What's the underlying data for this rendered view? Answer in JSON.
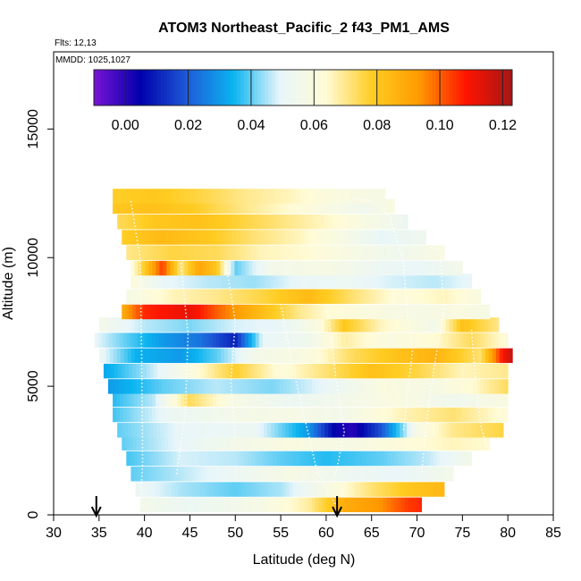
{
  "chart_data": {
    "type": "heatmap",
    "title": "ATOM3 Northeast_Pacific_2 f43_PM1_AMS",
    "flights_label": "Flts: 12,13",
    "dates_label": "MMDD: 1025,1027",
    "xlabel": "Latitude (deg N)",
    "ylabel": "Altitude (m)",
    "xlim": [
      30,
      85
    ],
    "ylim": [
      0,
      18000
    ],
    "x_ticks": [
      30,
      35,
      40,
      45,
      50,
      55,
      60,
      65,
      70,
      75,
      80,
      85
    ],
    "y_ticks": [
      0,
      5000,
      10000,
      15000
    ],
    "colorbar": {
      "range": [
        -0.01,
        0.123
      ],
      "ticks": [
        0.0,
        0.02,
        0.04,
        0.06,
        0.08,
        0.1,
        0.12
      ],
      "tick_labels": [
        "0.00",
        "0.02",
        "0.04",
        "0.06",
        "0.08",
        "0.10",
        "0.12"
      ],
      "major_lines": [
        0.0,
        0.02,
        0.04,
        0.06,
        0.08,
        0.1,
        0.12
      ],
      "colors": [
        "#7a14d6",
        "#0000aa",
        "#1e5ad8",
        "#0ab4f0",
        "#e8f6fa",
        "#fffbd6",
        "#ffcc22",
        "#ff9a00",
        "#ff1400",
        "#a51616"
      ]
    },
    "arrows_latitude": [
      34.7,
      61.2
    ],
    "layers": [
      {
        "alt": 400,
        "lat_min": 39.5,
        "lat_max": 70.5,
        "stops": [
          [
            39.5,
            0.056
          ],
          [
            45,
            0.052
          ],
          [
            53,
            0.058
          ],
          [
            58,
            0.068
          ],
          [
            62,
            0.088
          ],
          [
            66,
            0.094
          ],
          [
            69,
            0.104
          ],
          [
            70.5,
            0.106
          ]
        ]
      },
      {
        "alt": 1000,
        "lat_min": 39,
        "lat_max": 73,
        "stops": [
          [
            39,
            0.052
          ],
          [
            44,
            0.045
          ],
          [
            50,
            0.04
          ],
          [
            55,
            0.045
          ],
          [
            60,
            0.058
          ],
          [
            65,
            0.072
          ],
          [
            69,
            0.08
          ],
          [
            73,
            0.085
          ]
        ]
      },
      {
        "alt": 1600,
        "lat_min": 38.5,
        "lat_max": 74,
        "stops": [
          [
            38.5,
            0.04
          ],
          [
            44,
            0.046
          ],
          [
            50,
            0.052
          ],
          [
            56,
            0.058
          ],
          [
            62,
            0.053
          ],
          [
            68,
            0.05
          ],
          [
            74,
            0.056
          ]
        ]
      },
      {
        "alt": 2200,
        "lat_min": 38,
        "lat_max": 76,
        "stops": [
          [
            38,
            0.038
          ],
          [
            44,
            0.048
          ],
          [
            50,
            0.046
          ],
          [
            55,
            0.04
          ],
          [
            60,
            0.036
          ],
          [
            66,
            0.04
          ],
          [
            71,
            0.046
          ],
          [
            76,
            0.056
          ]
        ]
      },
      {
        "alt": 2800,
        "lat_min": 37.5,
        "lat_max": 78,
        "stops": [
          [
            37.5,
            0.04
          ],
          [
            44,
            0.05
          ],
          [
            50,
            0.056
          ],
          [
            56,
            0.06
          ],
          [
            62,
            0.058
          ],
          [
            68,
            0.062
          ],
          [
            74,
            0.066
          ],
          [
            78,
            0.064
          ]
        ]
      },
      {
        "alt": 3300,
        "lat_min": 37,
        "lat_max": 79.5,
        "stops": [
          [
            37,
            0.04
          ],
          [
            44,
            0.05
          ],
          [
            52,
            0.052
          ],
          [
            58,
            0.03
          ],
          [
            61,
            0.004
          ],
          [
            63,
            0.0
          ],
          [
            66,
            0.018
          ],
          [
            70,
            0.058
          ],
          [
            74,
            0.07
          ],
          [
            79.5,
            0.076
          ]
        ]
      },
      {
        "alt": 3900,
        "lat_min": 36.5,
        "lat_max": 80,
        "stops": [
          [
            36.5,
            0.038
          ],
          [
            43,
            0.052
          ],
          [
            50,
            0.056
          ],
          [
            56,
            0.058
          ],
          [
            62,
            0.056
          ],
          [
            68,
            0.066
          ],
          [
            74,
            0.072
          ],
          [
            80,
            0.062
          ]
        ]
      },
      {
        "alt": 4500,
        "lat_min": 36.5,
        "lat_max": 80,
        "stops": [
          [
            36.5,
            0.036
          ],
          [
            41,
            0.046
          ],
          [
            45,
            0.074
          ],
          [
            50,
            0.058
          ],
          [
            56,
            0.052
          ],
          [
            62,
            0.056
          ],
          [
            68,
            0.06
          ],
          [
            74,
            0.054
          ],
          [
            80,
            0.06
          ]
        ]
      },
      {
        "alt": 5000,
        "lat_min": 36,
        "lat_max": 80,
        "stops": [
          [
            36,
            0.03
          ],
          [
            42,
            0.04
          ],
          [
            48,
            0.046
          ],
          [
            54,
            0.042
          ],
          [
            60,
            0.05
          ],
          [
            66,
            0.06
          ],
          [
            72,
            0.058
          ],
          [
            76,
            0.064
          ],
          [
            80,
            0.074
          ]
        ]
      },
      {
        "alt": 5600,
        "lat_min": 35.5,
        "lat_max": 80,
        "stops": [
          [
            35.5,
            0.032
          ],
          [
            40,
            0.044
          ],
          [
            45,
            0.06
          ],
          [
            50,
            0.078
          ],
          [
            55,
            0.062
          ],
          [
            60,
            0.072
          ],
          [
            65,
            0.082
          ],
          [
            70,
            0.076
          ],
          [
            75,
            0.066
          ],
          [
            80,
            0.07
          ]
        ]
      },
      {
        "alt": 6200,
        "lat_min": 35,
        "lat_max": 80.5,
        "stops": [
          [
            35,
            0.052
          ],
          [
            39,
            0.034
          ],
          [
            44,
            0.03
          ],
          [
            48,
            0.04
          ],
          [
            52,
            0.056
          ],
          [
            58,
            0.06
          ],
          [
            63,
            0.074
          ],
          [
            68,
            0.082
          ],
          [
            72,
            0.086
          ],
          [
            77,
            0.072
          ],
          [
            79.5,
            0.11
          ],
          [
            80.5,
            0.118
          ]
        ]
      },
      {
        "alt": 6800,
        "lat_min": 34.5,
        "lat_max": 80,
        "stops": [
          [
            34.5,
            0.05
          ],
          [
            38,
            0.04
          ],
          [
            42,
            0.03
          ],
          [
            46,
            0.024
          ],
          [
            50,
            0.01
          ],
          [
            53,
            0.05
          ],
          [
            58,
            0.054
          ],
          [
            62,
            0.068
          ],
          [
            67,
            0.06
          ],
          [
            72,
            0.064
          ],
          [
            76,
            0.074
          ],
          [
            80,
            0.062
          ]
        ]
      },
      {
        "alt": 7400,
        "lat_min": 35,
        "lat_max": 79,
        "stops": [
          [
            35,
            0.056
          ],
          [
            40,
            0.046
          ],
          [
            45,
            0.042
          ],
          [
            50,
            0.048
          ],
          [
            55,
            0.05
          ],
          [
            59,
            0.06
          ],
          [
            62,
            0.08
          ],
          [
            66,
            0.066
          ],
          [
            72,
            0.056
          ],
          [
            75,
            0.082
          ],
          [
            79,
            0.07
          ]
        ]
      },
      {
        "alt": 7900,
        "lat_min": 37.5,
        "lat_max": 78,
        "stops": [
          [
            37.5,
            0.088
          ],
          [
            40,
            0.106
          ],
          [
            45,
            0.112
          ],
          [
            48,
            0.1
          ],
          [
            52,
            0.086
          ],
          [
            57,
            0.07
          ],
          [
            60,
            0.064
          ],
          [
            65,
            0.06
          ],
          [
            70,
            0.058
          ],
          [
            75,
            0.06
          ],
          [
            78,
            0.058
          ]
        ]
      },
      {
        "alt": 8500,
        "lat_min": 38,
        "lat_max": 77,
        "stops": [
          [
            38,
            0.058
          ],
          [
            43,
            0.066
          ],
          [
            48,
            0.07
          ],
          [
            53,
            0.076
          ],
          [
            58,
            0.084
          ],
          [
            63,
            0.072
          ],
          [
            68,
            0.062
          ],
          [
            73,
            0.066
          ],
          [
            77,
            0.06
          ]
        ]
      },
      {
        "alt": 9100,
        "lat_min": 38.5,
        "lat_max": 76,
        "stops": [
          [
            38.5,
            0.062
          ],
          [
            42,
            0.05
          ],
          [
            47,
            0.046
          ],
          [
            52,
            0.044
          ],
          [
            57,
            0.05
          ],
          [
            62,
            0.052
          ],
          [
            67,
            0.048
          ],
          [
            72,
            0.046
          ],
          [
            76,
            0.05
          ]
        ]
      },
      {
        "alt": 9600,
        "lat_min": 38.5,
        "lat_max": 75,
        "stops": [
          [
            38.5,
            0.06
          ],
          [
            42,
            0.104
          ],
          [
            44,
            0.07
          ],
          [
            46,
            0.09
          ],
          [
            48,
            0.08
          ],
          [
            50,
            0.04
          ],
          [
            54,
            0.056
          ],
          [
            60,
            0.058
          ],
          [
            66,
            0.052
          ],
          [
            70,
            0.05
          ],
          [
            75,
            0.056
          ]
        ]
      },
      {
        "alt": 10200,
        "lat_min": 38,
        "lat_max": 73,
        "stops": [
          [
            38,
            0.07
          ],
          [
            43,
            0.076
          ],
          [
            48,
            0.074
          ],
          [
            53,
            0.066
          ],
          [
            58,
            0.064
          ],
          [
            63,
            0.058
          ],
          [
            68,
            0.054
          ],
          [
            73,
            0.06
          ]
        ]
      },
      {
        "alt": 10800,
        "lat_min": 37.5,
        "lat_max": 71,
        "stops": [
          [
            37.5,
            0.078
          ],
          [
            42,
            0.084
          ],
          [
            47,
            0.08
          ],
          [
            52,
            0.072
          ],
          [
            57,
            0.066
          ],
          [
            62,
            0.058
          ],
          [
            66,
            0.05
          ],
          [
            71,
            0.054
          ]
        ]
      },
      {
        "alt": 11400,
        "lat_min": 37,
        "lat_max": 69,
        "stops": [
          [
            37,
            0.074
          ],
          [
            41,
            0.08
          ],
          [
            46,
            0.082
          ],
          [
            51,
            0.076
          ],
          [
            56,
            0.07
          ],
          [
            61,
            0.064
          ],
          [
            65,
            0.058
          ],
          [
            69,
            0.052
          ]
        ]
      },
      {
        "alt": 12000,
        "lat_min": 36.5,
        "lat_max": 67.5,
        "stops": [
          [
            36.5,
            0.08
          ],
          [
            41,
            0.082
          ],
          [
            46,
            0.078
          ],
          [
            51,
            0.07
          ],
          [
            56,
            0.064
          ],
          [
            61,
            0.058
          ],
          [
            64,
            0.054
          ],
          [
            67.5,
            0.06
          ]
        ]
      },
      {
        "alt": 12400,
        "lat_min": 36.5,
        "lat_max": 66.5,
        "stops": [
          [
            36.5,
            0.078
          ],
          [
            41,
            0.08
          ],
          [
            46,
            0.076
          ],
          [
            51,
            0.07
          ],
          [
            56,
            0.066
          ],
          [
            61,
            0.06
          ],
          [
            66.5,
            0.058
          ]
        ]
      }
    ],
    "flight_tracks": [
      [
        [
          38.5,
          12200
        ],
        [
          39.5,
          10000
        ],
        [
          39.7,
          6000
        ],
        [
          39.8,
          2000
        ],
        [
          39.5,
          300
        ]
      ],
      [
        [
          44,
          9800
        ],
        [
          44.8,
          7000
        ],
        [
          44.5,
          4000
        ],
        [
          43.5,
          1500
        ]
      ],
      [
        [
          49,
          9700
        ],
        [
          50,
          7500
        ],
        [
          49.5,
          5200
        ],
        [
          50,
          3000
        ]
      ],
      [
        [
          55,
          8200
        ],
        [
          56.5,
          5500
        ],
        [
          58,
          3200
        ],
        [
          59,
          1700
        ],
        [
          61,
          400
        ]
      ],
      [
        [
          60,
          8200
        ],
        [
          60.5,
          7000
        ],
        [
          61,
          5500
        ],
        [
          62,
          3200
        ],
        [
          61,
          1500
        ]
      ],
      [
        [
          63,
          12300
        ],
        [
          65,
          12200
        ],
        [
          67,
          11600
        ],
        [
          68.5,
          9800
        ],
        [
          69,
          7500
        ],
        [
          69.5,
          6400
        ],
        [
          68.5,
          3300
        ]
      ],
      [
        [
          71.5,
          10400
        ],
        [
          72.5,
          10300
        ],
        [
          73,
          8000
        ],
        [
          72,
          6000
        ],
        [
          71,
          3500
        ],
        [
          70.5,
          1600
        ]
      ],
      [
        [
          76,
          7200
        ],
        [
          76.5,
          5000
        ],
        [
          77,
          3500
        ],
        [
          78,
          2200
        ]
      ]
    ]
  }
}
